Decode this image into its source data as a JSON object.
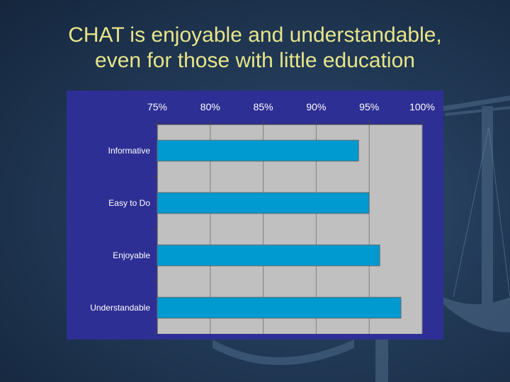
{
  "title": {
    "line1": "CHAT is enjoyable and understandable,",
    "line2": "even for those with little education"
  },
  "colors": {
    "title_text": "#e8e58a",
    "panel_background": "#2e2f94",
    "plot_background": "#c0c0c0",
    "bar_fill": "#009ad0",
    "label_text": "#ffffff"
  },
  "chart_data": {
    "type": "bar",
    "orientation": "horizontal",
    "categories": [
      "Informative",
      "Easy to Do",
      "Enjoyable",
      "Understandable"
    ],
    "values": [
      94,
      95,
      96,
      98
    ],
    "tick_labels": [
      "75%",
      "80%",
      "85%",
      "90%",
      "95%",
      "100%"
    ],
    "xlim": [
      75,
      100
    ],
    "grid": true,
    "legend": "none"
  }
}
